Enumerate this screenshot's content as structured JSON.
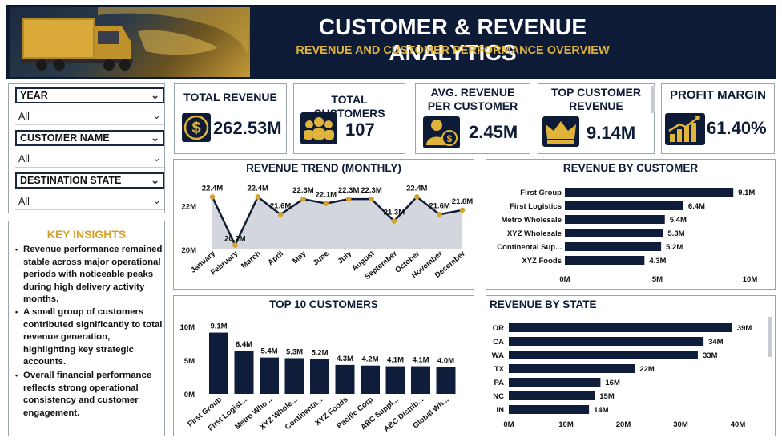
{
  "header": {
    "title": "CUSTOMER & REVENUE ANALYTICS",
    "subtitle": "REVENUE AND CUSTOMER PERFORMANCE OVERVIEW"
  },
  "slicers": [
    {
      "label": "YEAR",
      "value": "All"
    },
    {
      "label": "CUSTOMER NAME",
      "value": "All"
    },
    {
      "label": "DESTINATION STATE",
      "value": "All"
    }
  ],
  "insights": {
    "title": "KEY INSIGHTS",
    "items": [
      "Revenue performance remained stable across major operational periods with noticeable peaks during high delivery activity months.",
      "A small group of customers contributed significantly to total revenue generation, highlighting key strategic accounts.",
      "Overall financial performance reflects strong operational consistency and customer engagement."
    ]
  },
  "kpis": [
    {
      "title": "TOTAL REVENUE",
      "value": "262.53M",
      "icon": "dollar-coin-icon"
    },
    {
      "title": "TOTAL CUSTOMERS",
      "value": "107",
      "icon": "people-group-icon"
    },
    {
      "title": "AVG. REVENUE PER CUSTOMER",
      "value": "2.45M",
      "icon": "person-coin-icon"
    },
    {
      "title": "TOP CUSTOMER REVENUE",
      "value": "9.14M",
      "icon": "crown-icon"
    },
    {
      "title": "PROFIT MARGIN",
      "value": "61.40%",
      "icon": "growth-chart-icon"
    }
  ],
  "colors": {
    "navy": "#0d1b36",
    "gold": "#d4a22b",
    "area": "#d3d6dc",
    "bar": "#0f1c3a"
  },
  "chart_data": [
    {
      "type": "area",
      "title": "REVENUE TREND (MONTHLY)",
      "categories": [
        "January",
        "February",
        "March",
        "April",
        "May",
        "June",
        "July",
        "August",
        "September",
        "October",
        "November",
        "December"
      ],
      "values": [
        22.4,
        20.2,
        22.4,
        21.6,
        22.3,
        22.1,
        22.3,
        22.3,
        21.3,
        22.4,
        21.6,
        21.8
      ],
      "labels": [
        "22.4M",
        "20.2M",
        "22.4M",
        "21.6M",
        "22.3M",
        "22.1M",
        "22.3M",
        "22.3M",
        "21.3M",
        "22.4M",
        "21.6M",
        "21.8M"
      ],
      "yticks": [
        "20M",
        "22M"
      ],
      "ylim": [
        20,
        23
      ]
    },
    {
      "type": "bar",
      "orientation": "horizontal",
      "title": "REVENUE BY CUSTOMER",
      "categories": [
        "First Group",
        "First Logistics",
        "Metro Wholesale",
        "XYZ Wholesale",
        "Continental Sup...",
        "XYZ Foods"
      ],
      "values": [
        9.1,
        6.4,
        5.4,
        5.3,
        5.2,
        4.3
      ],
      "labels": [
        "9.1M",
        "6.4M",
        "5.4M",
        "5.3M",
        "5.2M",
        "4.3M"
      ],
      "xticks": [
        "0M",
        "5M",
        "10M"
      ],
      "xlim": [
        0,
        10
      ]
    },
    {
      "type": "bar",
      "title": "TOP 10 CUSTOMERS",
      "categories": [
        "First Group",
        "First Logist...",
        "Metro Who...",
        "XYZ Whole...",
        "Continenta...",
        "XYZ Foods",
        "Pacific Corp",
        "ABC Suppl...",
        "ABC Distrib...",
        "Global Wh..."
      ],
      "values": [
        9.1,
        6.4,
        5.4,
        5.3,
        5.2,
        4.3,
        4.2,
        4.1,
        4.1,
        4.0
      ],
      "labels": [
        "9.1M",
        "6.4M",
        "5.4M",
        "5.3M",
        "5.2M",
        "4.3M",
        "4.2M",
        "4.1M",
        "4.1M",
        "4.0M"
      ],
      "yticks": [
        "0M",
        "5M",
        "10M"
      ],
      "ylim": [
        0,
        10
      ]
    },
    {
      "type": "bar",
      "orientation": "horizontal",
      "title": "REVENUE BY STATE",
      "categories": [
        "OR",
        "CA",
        "WA",
        "TX",
        "PA",
        "NC",
        "IN"
      ],
      "values": [
        39,
        34,
        33,
        22,
        16,
        15,
        14
      ],
      "labels": [
        "39M",
        "34M",
        "33M",
        "22M",
        "16M",
        "15M",
        "14M"
      ],
      "xticks": [
        "0M",
        "10M",
        "20M",
        "30M",
        "40M"
      ],
      "xlim": [
        0,
        40
      ]
    }
  ]
}
